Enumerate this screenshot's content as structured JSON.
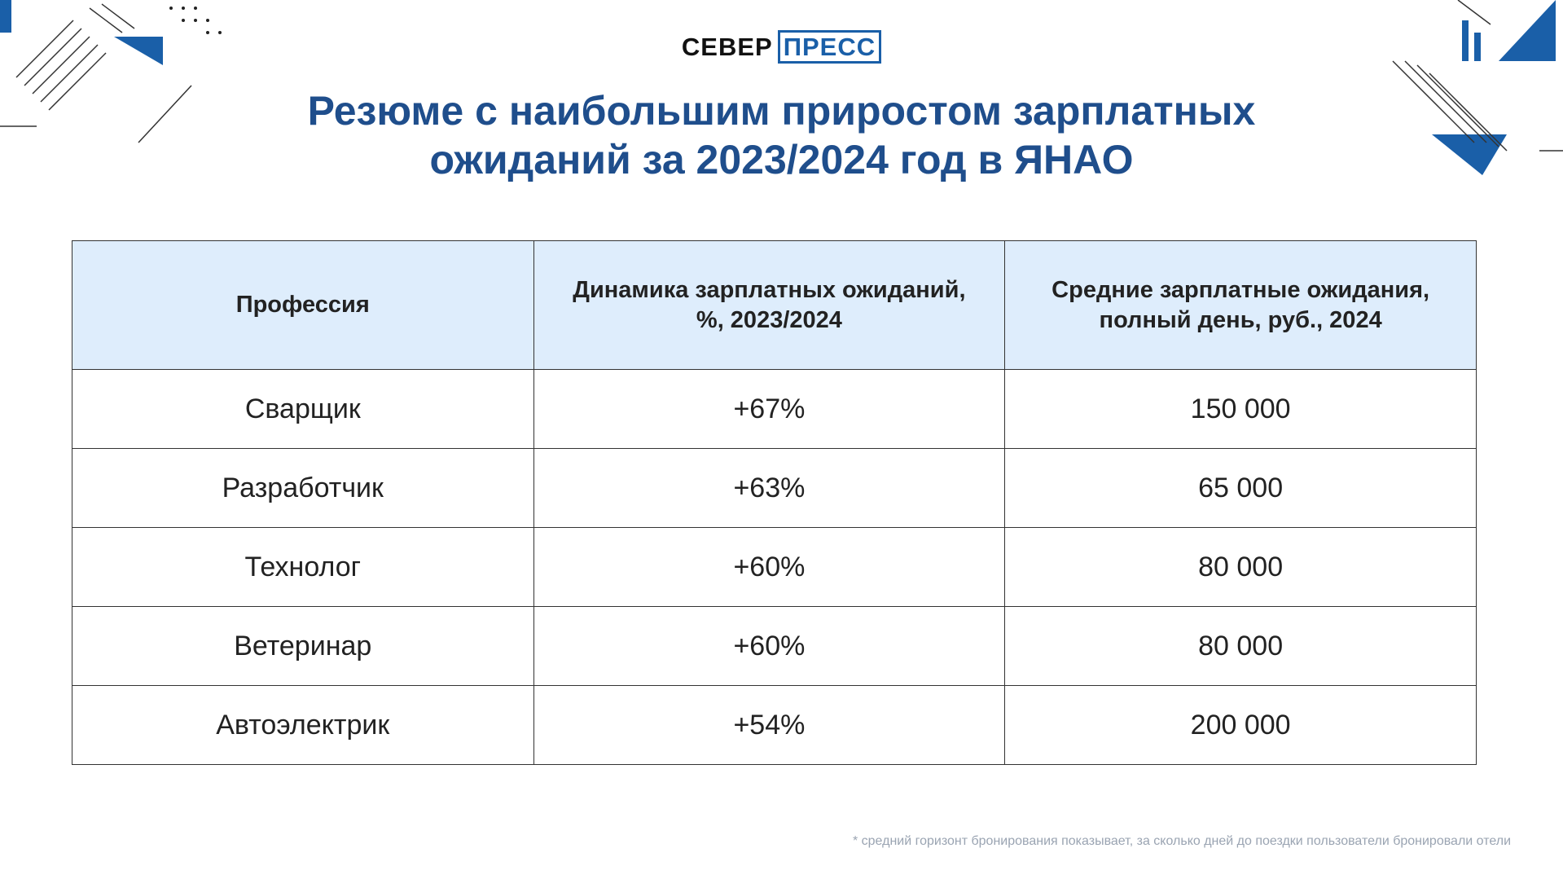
{
  "logo": {
    "left": "СЕВЕР",
    "right": "ПРЕСС"
  },
  "title": [
    "Резюме с наибольшим приростом зарплатных",
    "ожиданий за 2023/2024 год в ЯНАО"
  ],
  "table": {
    "header": [
      [
        "Профессия"
      ],
      [
        "Динамика зарплатных ожиданий,",
        "%, 2023/2024"
      ],
      [
        "Средние зарплатные ожидания,",
        "полный день, руб., 2024"
      ]
    ],
    "rows": [
      [
        "Сварщик",
        "+67%",
        "150 000"
      ],
      [
        "Разработчик",
        "+63%",
        "65 000"
      ],
      [
        "Технолог",
        "+60%",
        "80 000"
      ],
      [
        "Ветеринар",
        "+60%",
        "80 000"
      ],
      [
        "Автоэлектрик",
        "+54%",
        "200 000"
      ]
    ]
  },
  "footnote": "* средний горизонт бронирования показывает, за сколько дней до поездки пользователи бронировали отели"
}
